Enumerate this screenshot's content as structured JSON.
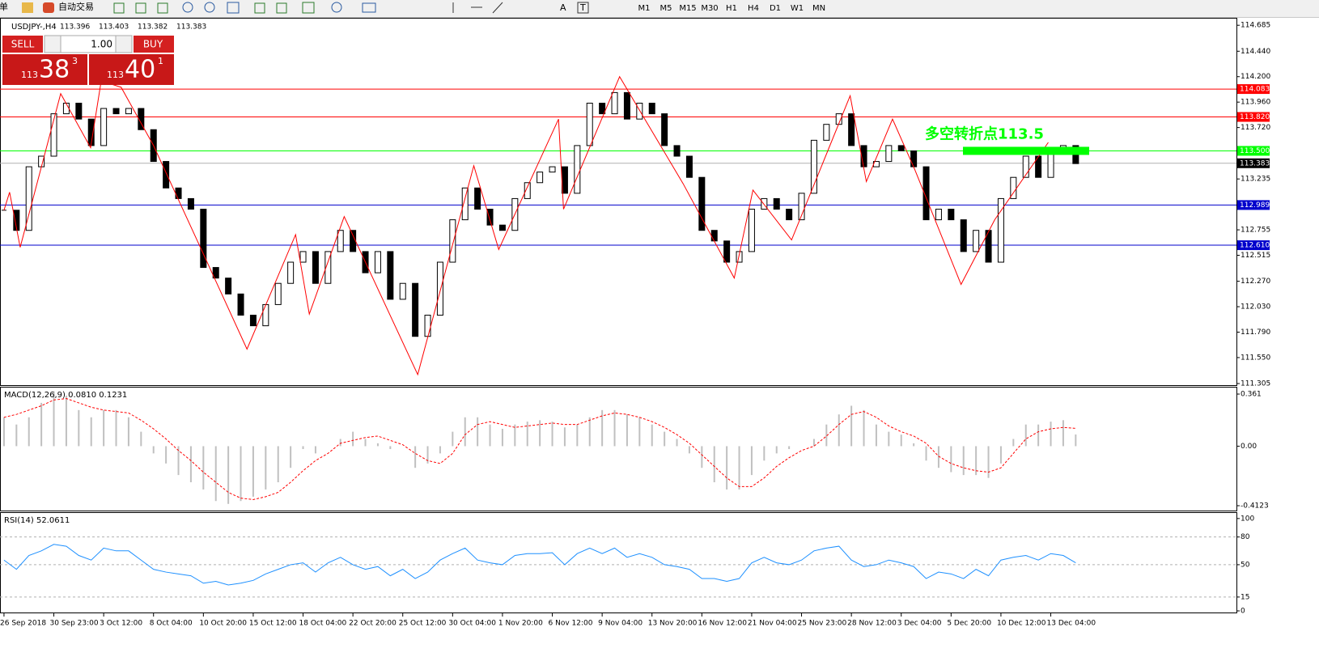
{
  "toolbar": {
    "orders": "订单",
    "auto_trading": "自动交易",
    "text_tool": "A",
    "label_tool": "T",
    "timeframes": [
      "M1",
      "M5",
      "M15",
      "M30",
      "H1",
      "H4",
      "D1",
      "W1",
      "MN"
    ]
  },
  "trade_panel": {
    "sell": "SELL",
    "buy": "BUY",
    "lot": "1.00",
    "bid": {
      "prefix": "113",
      "big": "38",
      "small": "3"
    },
    "ask": {
      "prefix": "113",
      "big": "40",
      "small": "1"
    }
  },
  "chart_data": [
    {
      "type": "candlestick",
      "title": "USDJPY-,H4",
      "header_values": [
        113.396,
        113.403,
        113.382,
        113.383
      ],
      "color": "#000000",
      "values": [
        112.94,
        112.75,
        113.35,
        113.45,
        113.85,
        113.95,
        113.8,
        113.55,
        113.9,
        113.85,
        113.9,
        113.7,
        113.4,
        113.15,
        113.05,
        112.95,
        112.4,
        112.3,
        112.15,
        111.95,
        111.85,
        112.05,
        112.25,
        112.45,
        112.55,
        112.25,
        112.55,
        112.75,
        112.55,
        112.35,
        112.55,
        112.1,
        112.25,
        111.75,
        111.95,
        112.45,
        112.85,
        113.15,
        112.95,
        112.8,
        112.75,
        113.05,
        113.2,
        113.3,
        113.35,
        113.1,
        113.55,
        113.95,
        113.85,
        114.05,
        113.8,
        113.95,
        113.85,
        113.55,
        113.45,
        113.25,
        112.75,
        112.65,
        112.45,
        112.55,
        112.95,
        113.05,
        112.95,
        112.85,
        113.1,
        113.6,
        113.75,
        113.85,
        113.55,
        113.35,
        113.4,
        113.55,
        113.5,
        113.35,
        112.85,
        112.95,
        112.85,
        112.55,
        112.75,
        112.45,
        113.05,
        113.25,
        113.45,
        113.25,
        113.5,
        113.55,
        113.38
      ],
      "zigzag": {
        "color": "#ff0000",
        "x": [
          0,
          0.45,
          1.3,
          4.55,
          6.95,
          7.8,
          9.4,
          12,
          15.6,
          19.5,
          23.4,
          24.5,
          27.3,
          33.2,
          37.7,
          39.7,
          44.5,
          44.9,
          49.4,
          54.5,
          58.6,
          60.1,
          63.2,
          67.9,
          69.2,
          71.3,
          73.1,
          76.8,
          79.5,
          83.8
        ],
        "values": [
          112.94,
          113.11,
          112.59,
          114.04,
          113.53,
          114.16,
          114.1,
          113.55,
          112.63,
          111.63,
          112.71,
          111.96,
          112.88,
          111.39,
          113.36,
          112.57,
          113.8,
          112.95,
          114.2,
          113.19,
          112.3,
          113.13,
          112.66,
          114.02,
          113.21,
          113.8,
          113.32,
          112.24,
          112.85,
          113.58
        ]
      },
      "levels": [
        {
          "value": 114.083,
          "label": "114.083",
          "color": "#ff0000"
        },
        {
          "value": 113.82,
          "label": "113.820",
          "color": "#ff0000"
        },
        {
          "value": 113.5,
          "label": "113.500",
          "color": "#00ff00"
        },
        {
          "value": 112.989,
          "label": "112.989",
          "color": "#0000cc"
        },
        {
          "value": 112.61,
          "label": "112.610",
          "color": "#0000cc"
        },
        {
          "value": 113.383,
          "label": "113.383",
          "color": "#000000"
        }
      ],
      "annotation": {
        "text": "多空转折点113.5",
        "value": 113.5,
        "color": "#00ff00"
      },
      "ylim": [
        111.29,
        114.74
      ],
      "yticks": [
        114.685,
        {
          "value": 114.44,
          "label": "114.440"
        },
        {
          "value": 114.2,
          "label": "114.200"
        },
        {
          "value": 113.96,
          "label": "113.960"
        },
        {
          "value": 113.72,
          "label": "113.720"
        },
        113.235,
        112.755,
        112.515,
        {
          "value": 112.27,
          "label": "112.270"
        },
        {
          "value": 112.03,
          "label": "112.030"
        },
        {
          "value": 111.79,
          "label": "111.790"
        },
        {
          "value": 111.55,
          "label": "111.550"
        },
        111.305
      ],
      "xlim": [
        -0.32,
        98.9
      ],
      "xticks": [
        {
          "value": 0,
          "label": "26 Sep 2018"
        },
        {
          "value": 4,
          "label": "30 Sep 23:00"
        },
        {
          "value": 8,
          "label": "3 Oct 12:00"
        },
        {
          "value": 12,
          "label": "8 Oct 04:00"
        },
        {
          "value": 16,
          "label": "10 Oct 20:00"
        },
        {
          "value": 20,
          "label": "15 Oct 12:00"
        },
        {
          "value": 24,
          "label": "18 Oct 04:00"
        },
        {
          "value": 28,
          "label": "22 Oct 20:00"
        },
        {
          "value": 32,
          "label": "25 Oct 12:00"
        },
        {
          "value": 36,
          "label": "30 Oct 04:00"
        },
        {
          "value": 40,
          "label": "1 Nov 20:00"
        },
        {
          "value": 44,
          "label": "6 Nov 12:00"
        },
        {
          "value": 48,
          "label": "9 Nov 04:00"
        },
        {
          "value": 52,
          "label": "13 Nov 20:00"
        },
        {
          "value": 56,
          "label": "16 Nov 12:00"
        },
        {
          "value": 60,
          "label": "21 Nov 04:00"
        },
        {
          "value": 64,
          "label": "25 Nov 23:00"
        },
        {
          "value": 68,
          "label": "28 Nov 12:00"
        },
        {
          "value": 72,
          "label": "3 Dec 04:00"
        },
        {
          "value": 76,
          "label": "5 Dec 20:00"
        },
        {
          "value": 80,
          "label": "10 Dec 12:00"
        },
        {
          "value": 84,
          "label": "13 Dec 04:00"
        }
      ]
    },
    {
      "type": "bar",
      "title": "MACD(12,26,9) 0.0810 0.1231",
      "color": "#c0c0c0",
      "values": [
        0.2,
        0.15,
        0.2,
        0.3,
        0.38,
        0.35,
        0.25,
        0.2,
        0.25,
        0.25,
        0.2,
        0.1,
        -0.05,
        -0.12,
        -0.2,
        -0.25,
        -0.3,
        -0.38,
        -0.4,
        -0.38,
        -0.35,
        -0.3,
        -0.25,
        -0.15,
        -0.02,
        -0.05,
        0.0,
        0.05,
        0.1,
        0.05,
        0.02,
        -0.02,
        0.0,
        -0.15,
        -0.12,
        -0.05,
        0.1,
        0.2,
        0.2,
        0.15,
        0.12,
        0.15,
        0.17,
        0.18,
        0.17,
        0.13,
        0.15,
        0.2,
        0.25,
        0.25,
        0.22,
        0.2,
        0.15,
        0.1,
        0.05,
        -0.05,
        -0.15,
        -0.25,
        -0.3,
        -0.3,
        -0.2,
        -0.1,
        -0.05,
        -0.02,
        0.0,
        0.05,
        0.15,
        0.22,
        0.28,
        0.25,
        0.15,
        0.1,
        0.08,
        0.02,
        -0.1,
        -0.15,
        -0.18,
        -0.2,
        -0.2,
        -0.22,
        -0.12,
        0.05,
        0.15,
        0.15,
        0.17,
        0.18,
        0.081
      ],
      "signal": {
        "color": "#ff0000",
        "values": [
          0.2,
          0.22,
          0.25,
          0.28,
          0.32,
          0.33,
          0.3,
          0.27,
          0.25,
          0.24,
          0.23,
          0.18,
          0.12,
          0.05,
          -0.03,
          -0.1,
          -0.18,
          -0.25,
          -0.32,
          -0.36,
          -0.37,
          -0.35,
          -0.32,
          -0.25,
          -0.17,
          -0.1,
          -0.05,
          0.02,
          0.04,
          0.06,
          0.07,
          0.04,
          0.01,
          -0.05,
          -0.1,
          -0.12,
          -0.05,
          0.08,
          0.15,
          0.17,
          0.15,
          0.13,
          0.14,
          0.15,
          0.16,
          0.15,
          0.15,
          0.18,
          0.21,
          0.23,
          0.22,
          0.2,
          0.17,
          0.13,
          0.08,
          0.02,
          -0.06,
          -0.14,
          -0.22,
          -0.28,
          -0.28,
          -0.22,
          -0.14,
          -0.08,
          -0.03,
          0.0,
          0.07,
          0.15,
          0.22,
          0.24,
          0.2,
          0.14,
          0.1,
          0.07,
          0.02,
          -0.07,
          -0.12,
          -0.15,
          -0.17,
          -0.18,
          -0.15,
          -0.05,
          0.05,
          0.1,
          0.12,
          0.13,
          0.1231
        ]
      },
      "ylim": [
        -0.446,
        0.406
      ],
      "yticks": [
        0.361,
        {
          "value": 0,
          "label": "0.00"
        },
        -0.4123
      ]
    },
    {
      "type": "line",
      "title": "RSI(14) 52.0611",
      "color": "#1e90ff",
      "values": [
        55,
        45,
        60,
        65,
        72,
        70,
        60,
        55,
        68,
        65,
        65,
        55,
        45,
        42,
        40,
        38,
        30,
        32,
        28,
        30,
        33,
        40,
        45,
        50,
        52,
        42,
        52,
        58,
        50,
        45,
        48,
        38,
        45,
        35,
        42,
        55,
        62,
        68,
        55,
        52,
        50,
        60,
        62,
        62,
        63,
        50,
        62,
        68,
        62,
        68,
        58,
        62,
        58,
        50,
        48,
        45,
        35,
        35,
        32,
        35,
        52,
        58,
        52,
        50,
        55,
        65,
        68,
        70,
        55,
        48,
        50,
        55,
        52,
        48,
        35,
        42,
        40,
        35,
        45,
        38,
        55,
        58,
        60,
        55,
        62,
        60,
        52.0611
      ],
      "levels": [
        80,
        50,
        15
      ],
      "ylim": [
        -1.75,
        106
      ],
      "yticks": [
        100,
        80,
        50,
        15,
        0
      ]
    }
  ]
}
